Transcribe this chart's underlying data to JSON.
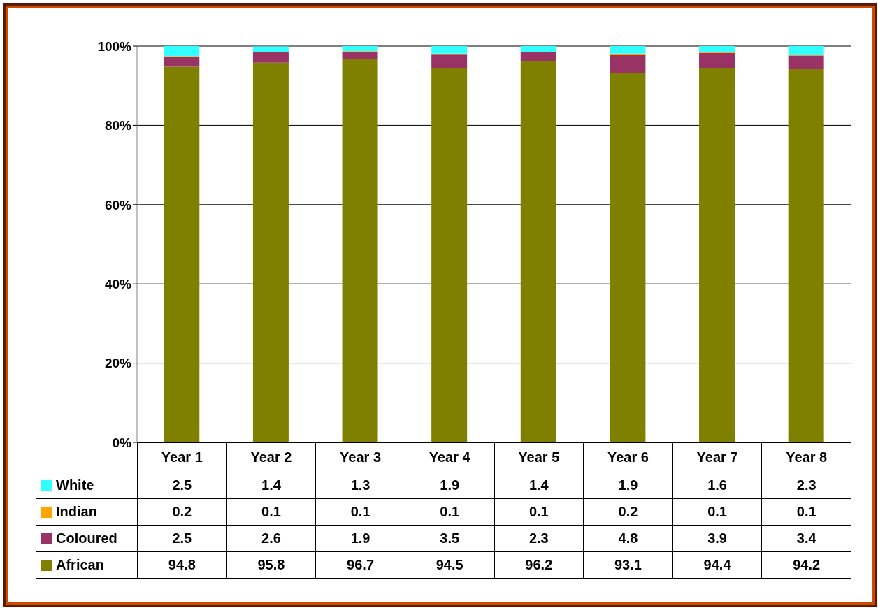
{
  "chart_data": {
    "type": "bar",
    "stacked": true,
    "categories": [
      "Year 1",
      "Year 2",
      "Year 3",
      "Year 4",
      "Year 5",
      "Year 6",
      "Year 7",
      "Year 8"
    ],
    "series": [
      {
        "name": "African",
        "color": "#808000",
        "values": [
          94.8,
          95.8,
          96.7,
          94.5,
          96.2,
          93.1,
          94.4,
          94.2
        ]
      },
      {
        "name": "Coloured",
        "color": "#993366",
        "values": [
          2.5,
          2.6,
          1.9,
          3.5,
          2.3,
          4.8,
          3.9,
          3.4
        ]
      },
      {
        "name": "Indian",
        "color": "#ffa500",
        "values": [
          0.2,
          0.1,
          0.1,
          0.1,
          0.1,
          0.2,
          0.1,
          0.1
        ]
      },
      {
        "name": "White",
        "color": "#33ffff",
        "values": [
          2.5,
          1.4,
          1.3,
          1.9,
          1.4,
          1.9,
          1.6,
          2.3
        ]
      }
    ],
    "ylim": [
      0,
      100
    ],
    "yticks": [
      {
        "value": 0,
        "label": "0%"
      },
      {
        "value": 20,
        "label": "20%"
      },
      {
        "value": 40,
        "label": "40%"
      },
      {
        "value": 60,
        "label": "60%"
      },
      {
        "value": 80,
        "label": "80%"
      },
      {
        "value": 100,
        "label": "100%"
      }
    ],
    "grid": "y",
    "legend": "bottom left",
    "data_labels": true
  }
}
